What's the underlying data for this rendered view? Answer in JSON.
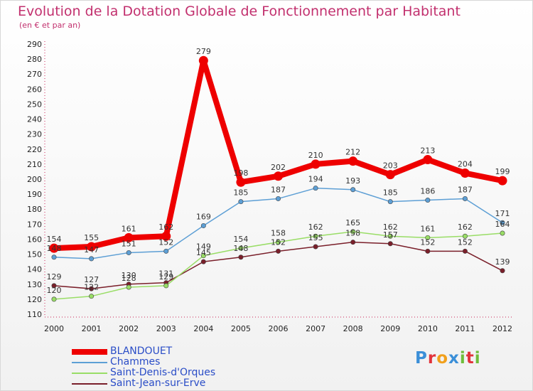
{
  "title": "Evolution de la Dotation Globale de Fonctionnement par Habitant",
  "subtitle": "(en € et par an)",
  "logo": {
    "text": "Proxiti",
    "letter_colors": [
      "#3b8fd8",
      "#e2333b",
      "#f1a01c",
      "#3b8fd8",
      "#6fbd3a",
      "#e2333b",
      "#6fbd3a"
    ]
  },
  "chart_data": {
    "type": "line",
    "x": [
      "2000",
      "2001",
      "2002",
      "2003",
      "2004",
      "2005",
      "2006",
      "2007",
      "2008",
      "2009",
      "2010",
      "2011",
      "2012"
    ],
    "ylim": [
      110,
      290
    ],
    "yticks": [
      "110",
      "120",
      "130",
      "140",
      "150",
      "160",
      "170",
      "180",
      "190",
      "200",
      "210",
      "220",
      "230",
      "240",
      "250",
      "260",
      "270",
      "280",
      "290"
    ],
    "grid": false,
    "legend": "bottom-left",
    "series": [
      {
        "name": "BLANDOUET",
        "color": "#ee0000",
        "values": [
          154,
          155,
          161,
          162,
          279,
          198,
          202,
          210,
          212,
          203,
          213,
          204,
          199
        ]
      },
      {
        "name": "Chammes",
        "color": "#5d9fd5",
        "values": [
          148,
          147,
          151,
          152,
          169,
          185,
          187,
          194,
          193,
          185,
          186,
          187,
          171
        ]
      },
      {
        "name": "Saint-Denis-d'Orques",
        "color": "#99dd66",
        "values": [
          120,
          122,
          128,
          129,
          149,
          154,
          158,
          162,
          165,
          162,
          161,
          162,
          164
        ]
      },
      {
        "name": "Saint-Jean-sur-Erve",
        "color": "#7a1f2a",
        "values": [
          129,
          127,
          130,
          131,
          145,
          148,
          152,
          155,
          158,
          157,
          152,
          152,
          139
        ]
      }
    ]
  }
}
